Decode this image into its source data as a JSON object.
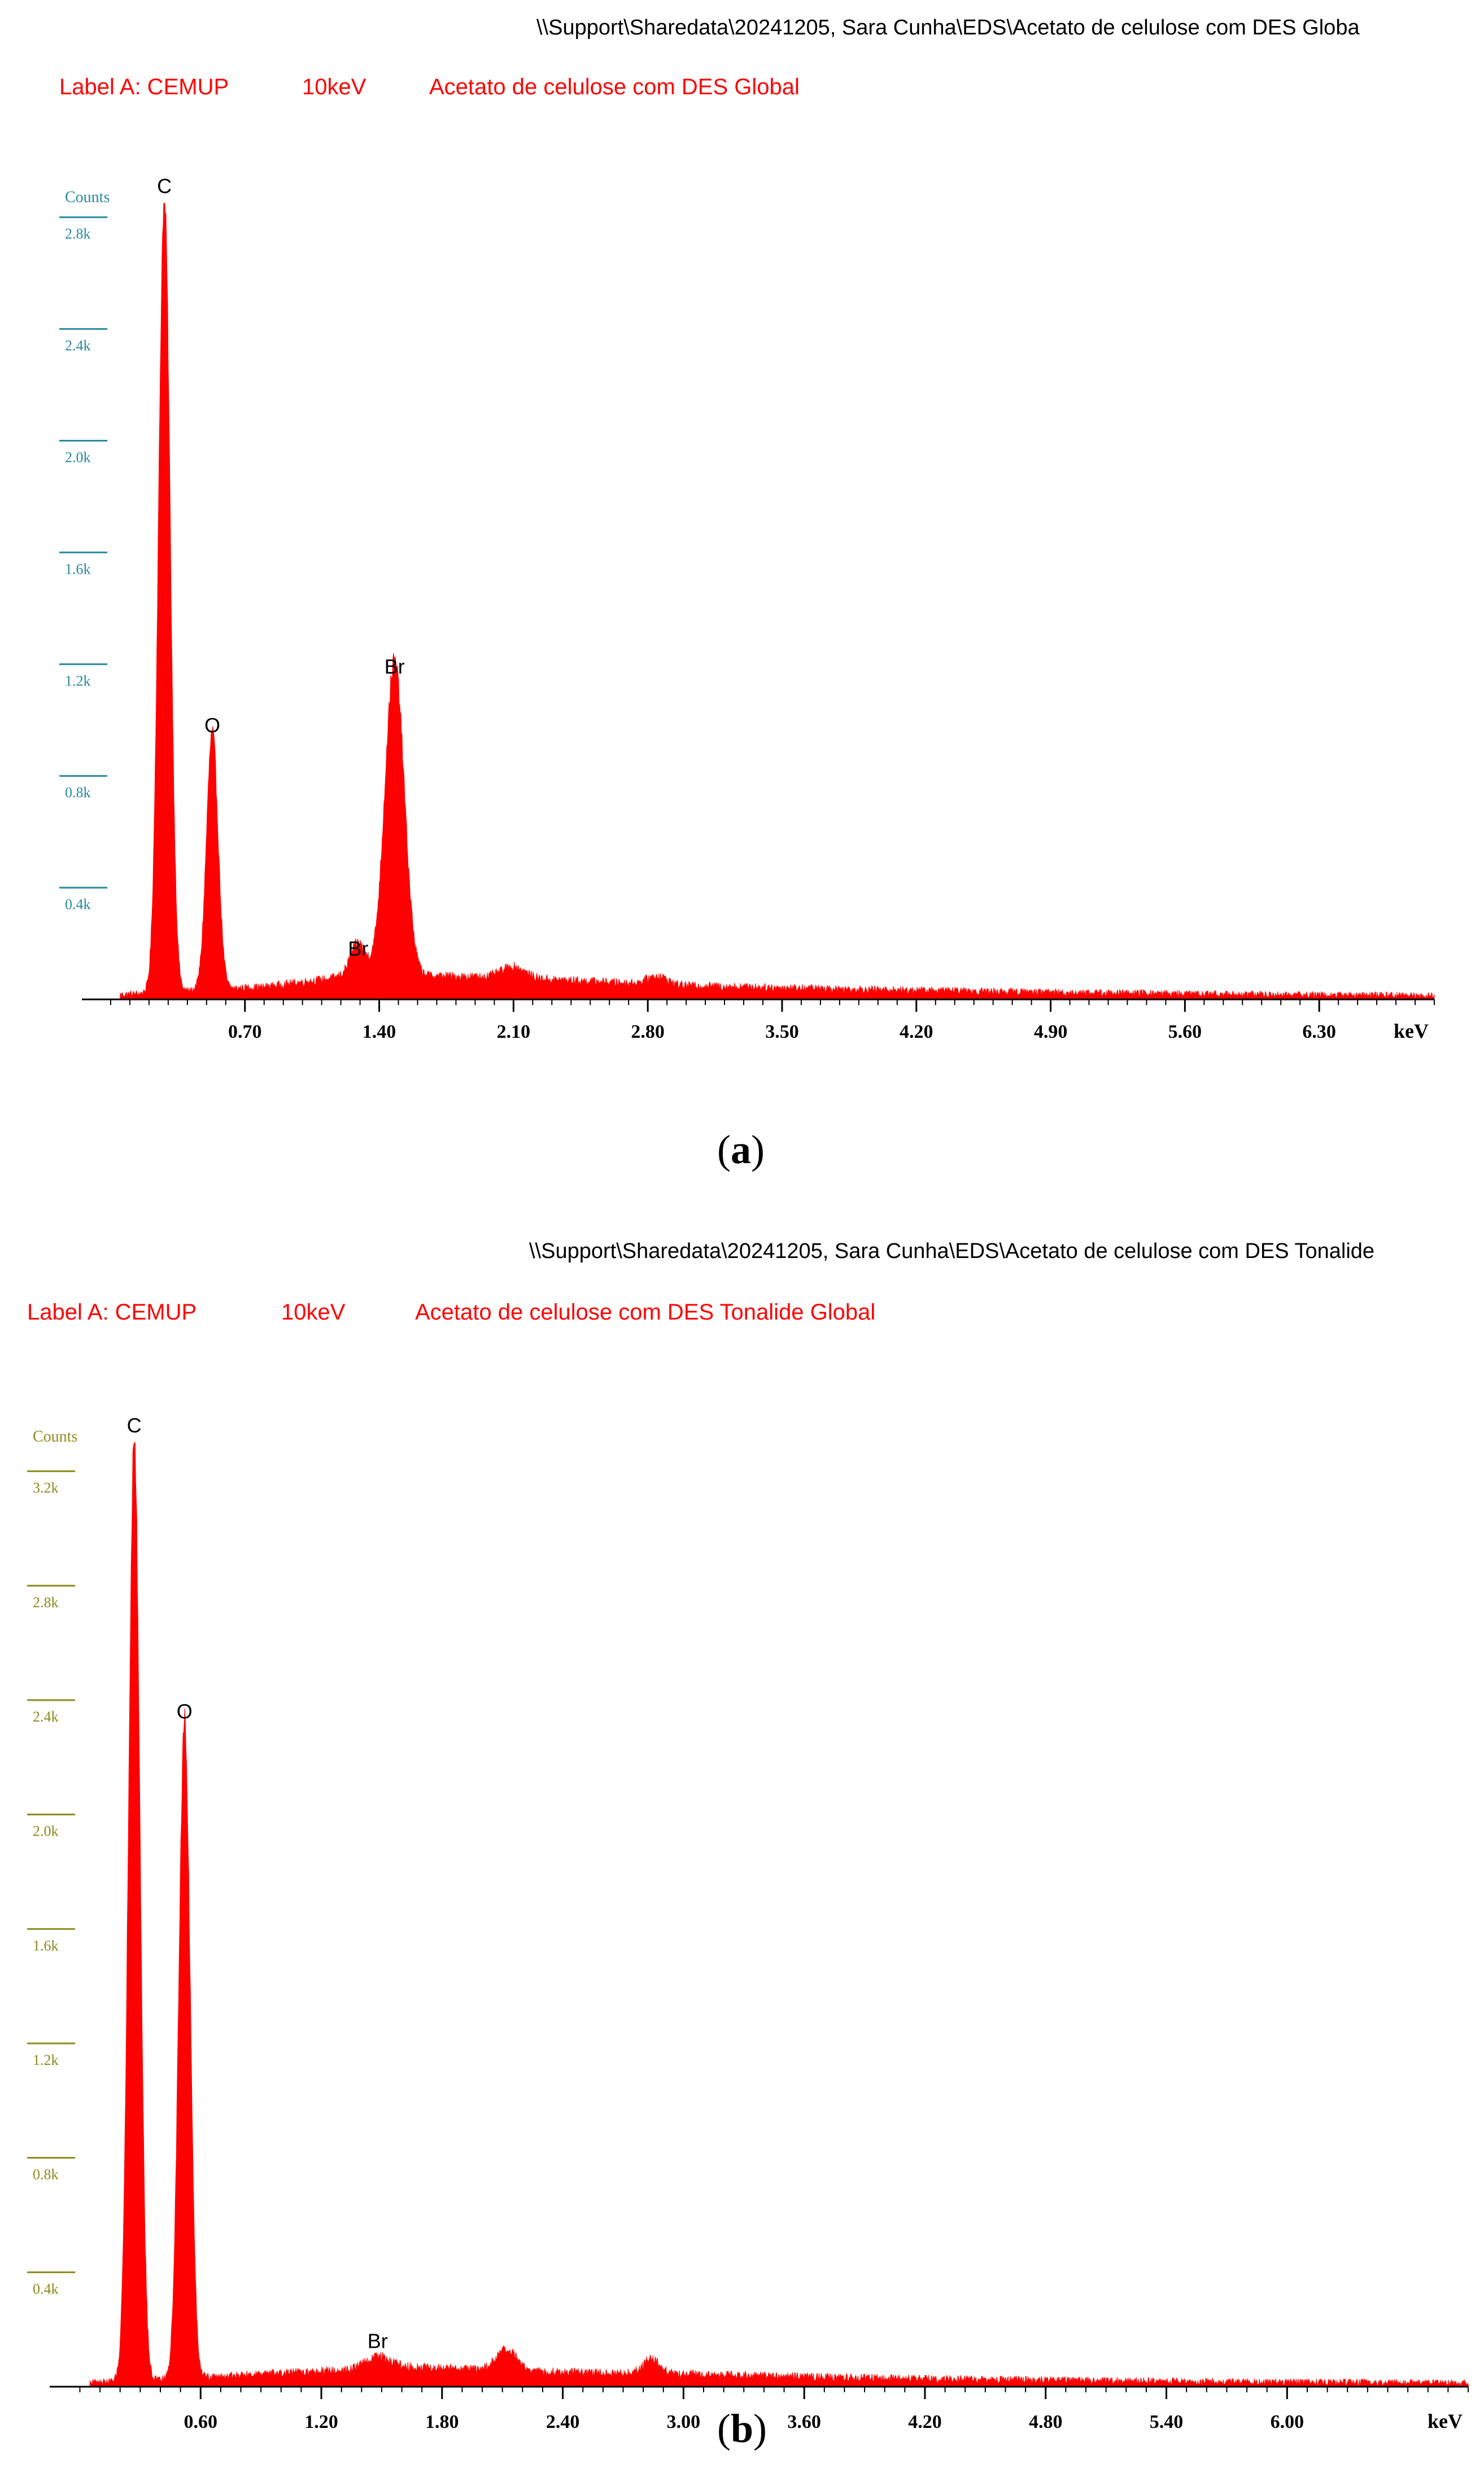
{
  "panels": [
    {
      "path": "\\\\Support\\Sharedata\\20241205, Sara Cunha\\EDS\\Acetato de celulose com DES  Globa",
      "label": "Label A: CEMUP",
      "voltage": "10keV",
      "sample": "Acetato de celulose com DES  Global",
      "caption_letter": "a",
      "axis_color": "#2a8a9e"
    },
    {
      "path": "\\\\Support\\Sharedata\\20241205, Sara Cunha\\EDS\\Acetato de celulose com DES Tonalide",
      "label": "Label A: CEMUP",
      "voltage": "10keV",
      "sample": "Acetato de celulose com DES Tonalide  Global",
      "caption_letter": "b",
      "axis_color": "#8b8b1e"
    }
  ],
  "chart_data": [
    {
      "type": "area",
      "ylabel": "Counts",
      "xlabel": "keV",
      "xlim": [
        -0.15,
        6.9
      ],
      "ylim": [
        0,
        2850
      ],
      "x_ticks": [
        "0.70",
        "1.40",
        "2.10",
        "2.80",
        "3.50",
        "4.20",
        "4.90",
        "5.60",
        "6.30"
      ],
      "x_tick_values": [
        0.7,
        1.4,
        2.1,
        2.8,
        3.5,
        4.2,
        4.9,
        5.6,
        6.3
      ],
      "y_ticks": [
        "0.4k",
        "0.8k",
        "1.2k",
        "1.6k",
        "2.0k",
        "2.4k",
        "2.8k"
      ],
      "y_tick_values": [
        400,
        800,
        1200,
        1600,
        2000,
        2400,
        2800
      ],
      "peaks": [
        {
          "element": "C",
          "energy": 0.28,
          "counts": 2850,
          "sigma": 0.03
        },
        {
          "element": "O",
          "energy": 0.53,
          "counts": 920,
          "sigma": 0.03
        },
        {
          "element": "Br",
          "energy": 1.48,
          "counts": 1130,
          "sigma": 0.05
        },
        {
          "element": "Br",
          "energy": 1.29,
          "counts": 120,
          "sigma": 0.04
        }
      ],
      "background": [
        {
          "x": 0.0,
          "y": 15
        },
        {
          "x": 0.4,
          "y": 30
        },
        {
          "x": 0.8,
          "y": 45
        },
        {
          "x": 1.2,
          "y": 80
        },
        {
          "x": 1.6,
          "y": 85
        },
        {
          "x": 2.0,
          "y": 80
        },
        {
          "x": 2.5,
          "y": 65
        },
        {
          "x": 3.0,
          "y": 50
        },
        {
          "x": 4.0,
          "y": 35
        },
        {
          "x": 5.0,
          "y": 25
        },
        {
          "x": 6.0,
          "y": 18
        },
        {
          "x": 6.9,
          "y": 14
        }
      ],
      "humps": [
        {
          "energy": 2.1,
          "counts": 40,
          "sigma": 0.06
        },
        {
          "energy": 2.85,
          "counts": 30,
          "sigma": 0.05
        }
      ],
      "peak_labels": [
        {
          "text": "C",
          "energy": 0.28,
          "counts": 2850
        },
        {
          "text": "O",
          "energy": 0.53,
          "counts": 920
        },
        {
          "text": "Br",
          "energy": 1.48,
          "counts": 1130
        },
        {
          "text": "Br",
          "energy": 1.29,
          "counts": 120
        }
      ]
    },
    {
      "type": "area",
      "ylabel": "Counts",
      "xlabel": "keV",
      "xlim": [
        -0.15,
        6.9
      ],
      "ylim": [
        0,
        3300
      ],
      "x_ticks": [
        "0.60",
        "1.20",
        "1.80",
        "2.40",
        "3.00",
        "3.60",
        "4.20",
        "4.80",
        "5.40",
        "6.00"
      ],
      "x_tick_values": [
        0.6,
        1.2,
        1.8,
        2.4,
        3.0,
        3.6,
        4.2,
        4.8,
        5.4,
        6.0
      ],
      "y_ticks": [
        "0.4k",
        "0.8k",
        "1.2k",
        "1.6k",
        "2.0k",
        "2.4k",
        "2.8k",
        "3.2k"
      ],
      "y_tick_values": [
        400,
        800,
        1200,
        1600,
        2000,
        2400,
        2800,
        3200
      ],
      "peaks": [
        {
          "element": "C",
          "energy": 0.27,
          "counts": 3300,
          "sigma": 0.028
        },
        {
          "element": "O",
          "energy": 0.52,
          "counts": 2300,
          "sigma": 0.028
        }
      ],
      "background": [
        {
          "x": 0.0,
          "y": 15
        },
        {
          "x": 0.4,
          "y": 25
        },
        {
          "x": 0.8,
          "y": 40
        },
        {
          "x": 1.2,
          "y": 55
        },
        {
          "x": 1.6,
          "y": 70
        },
        {
          "x": 2.0,
          "y": 60
        },
        {
          "x": 2.5,
          "y": 50
        },
        {
          "x": 3.0,
          "y": 45
        },
        {
          "x": 4.0,
          "y": 30
        },
        {
          "x": 5.0,
          "y": 22
        },
        {
          "x": 6.0,
          "y": 16
        },
        {
          "x": 6.9,
          "y": 13
        }
      ],
      "humps": [
        {
          "energy": 1.48,
          "counts": 40,
          "sigma": 0.06
        },
        {
          "energy": 2.12,
          "counts": 70,
          "sigma": 0.05
        },
        {
          "energy": 2.84,
          "counts": 50,
          "sigma": 0.04
        }
      ],
      "peak_labels": [
        {
          "text": "C",
          "energy": 0.27,
          "counts": 3300
        },
        {
          "text": "O",
          "energy": 0.52,
          "counts": 2300
        },
        {
          "text": "Br",
          "energy": 1.48,
          "counts": 100
        }
      ]
    }
  ]
}
